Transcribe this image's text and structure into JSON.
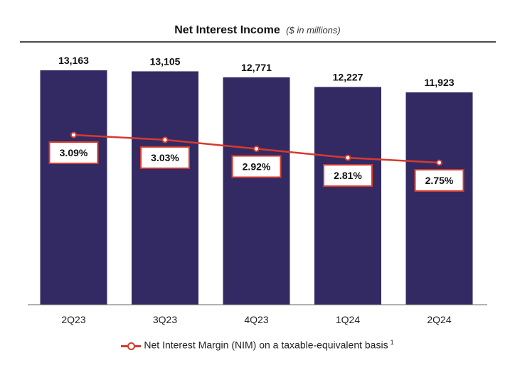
{
  "chart_data": {
    "type": "bar",
    "title": "Net Interest Income",
    "subtitle": "($ in millions)",
    "categories": [
      "2Q23",
      "3Q23",
      "4Q23",
      "1Q24",
      "2Q24"
    ],
    "series": [
      {
        "name": "Net Interest Income",
        "type": "bar",
        "values": [
          13163,
          13105,
          12771,
          12227,
          11923
        ],
        "labels": [
          "13,163",
          "13,105",
          "12,771",
          "12,227",
          "11,923"
        ],
        "color": "#332a63"
      },
      {
        "name": "Net Interest Margin (NIM) on a taxable-equivalent basis",
        "type": "line",
        "values": [
          3.09,
          3.03,
          2.92,
          2.81,
          2.75
        ],
        "labels": [
          "3.09%",
          "3.03%",
          "2.92%",
          "2.81%",
          "2.75%"
        ],
        "color": "#d63a2f"
      }
    ],
    "legend": {
      "label": "Net Interest Margin (NIM) on a taxable-equivalent basis",
      "superscript": "1",
      "placement": "bottom"
    },
    "grid": false
  }
}
